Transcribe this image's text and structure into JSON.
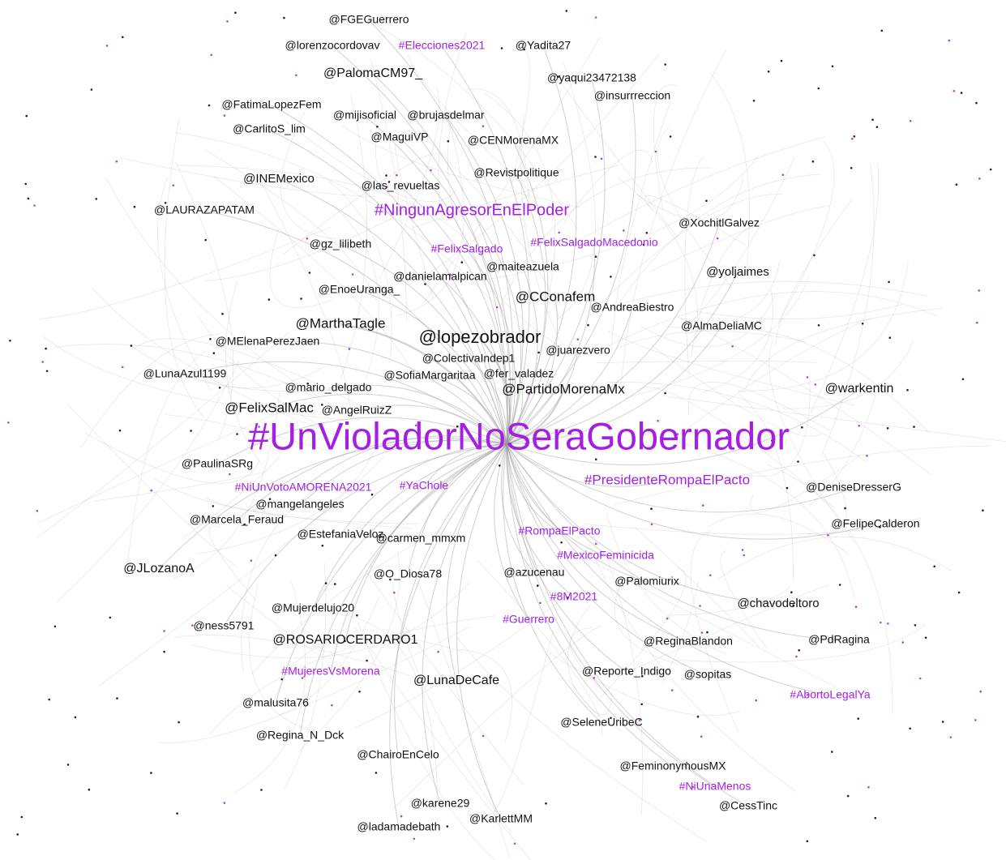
{
  "nodes": [
    {
      "label": "@FGEGuerrero"
    },
    {
      "label": "@lorenzocordovav"
    },
    {
      "label": "#Elecciones2021"
    },
    {
      "label": "@Yadita27"
    },
    {
      "label": "@PalomaCM97_"
    },
    {
      "label": "@yaqui23472138"
    },
    {
      "label": "@insurrreccion"
    },
    {
      "label": "@FatimaLopezFem"
    },
    {
      "label": "@mijisoficial"
    },
    {
      "label": "@brujasdelmar"
    },
    {
      "label": "@CarlitoS_lim"
    },
    {
      "label": "@MaguiVP"
    },
    {
      "label": "@CENMorenaMX"
    },
    {
      "label": "@Revistpolitique"
    },
    {
      "label": "@INEMexico"
    },
    {
      "label": "@las_revueltas"
    },
    {
      "label": "@LAURAZAPATAM"
    },
    {
      "label": "#NingunAgresorEnElPoder"
    },
    {
      "label": "@XochitlGalvez"
    },
    {
      "label": "#FelixSalgadoMacedonio"
    },
    {
      "label": "#FelixSalgado"
    },
    {
      "label": "@gz_lilibeth"
    },
    {
      "label": "@maiteazuela"
    },
    {
      "label": "@danielamalpican"
    },
    {
      "label": "@yoljaimes"
    },
    {
      "label": "@EnoeUranga_"
    },
    {
      "label": "@CConafem"
    },
    {
      "label": "@AndreaBiestro"
    },
    {
      "label": "@MarthaTagle"
    },
    {
      "label": "@AlmaDeliaMC"
    },
    {
      "label": "@lopezobrador"
    },
    {
      "label": "@MElenaPerezJaen"
    },
    {
      "label": "@ColectivaIndep1"
    },
    {
      "label": "@juarezvero"
    },
    {
      "label": "@LunaAzul1199"
    },
    {
      "label": "@mario_delgado"
    },
    {
      "label": "@SofiaMargaritaa"
    },
    {
      "label": "@fer_valadez"
    },
    {
      "label": "@PartidoMorenaMx"
    },
    {
      "label": "@warkentin"
    },
    {
      "label": "@FelixSalMac"
    },
    {
      "label": "@AngelRuizZ"
    },
    {
      "label": "#UnVioladorNoSeraGobernador"
    },
    {
      "label": "@PaulinaSRg"
    },
    {
      "label": "#NiUnVotoAMORENA2021"
    },
    {
      "label": "#YaChole"
    },
    {
      "label": "#PresidenteRompaElPacto"
    },
    {
      "label": "@DeniseDresserG"
    },
    {
      "label": "@mangelangeles"
    },
    {
      "label": "@Marcela_Feraud"
    },
    {
      "label": "@FelipeCalderon"
    },
    {
      "label": "@EstefaniaVeloz"
    },
    {
      "label": "@carmen_mmxm"
    },
    {
      "label": "#RompaElPacto"
    },
    {
      "label": "#MexicoFeminicida"
    },
    {
      "label": "@JLozanoA"
    },
    {
      "label": "@O_Diosa78"
    },
    {
      "label": "@azucenau"
    },
    {
      "label": "@Palomiurix"
    },
    {
      "label": "#8M2021"
    },
    {
      "label": "@Mujerdelujo20"
    },
    {
      "label": "@chavodeltoro"
    },
    {
      "label": "@ness5791"
    },
    {
      "label": "#Guerrero"
    },
    {
      "label": "@ROSARIOCERDARO1"
    },
    {
      "label": "@ReginaBlandon"
    },
    {
      "label": "@PdRagina"
    },
    {
      "label": "#MujeresVsMorena"
    },
    {
      "label": "@Reporte_Indigo"
    },
    {
      "label": "@sopitas"
    },
    {
      "label": "@LunaDeCafe"
    },
    {
      "label": "#AbortoLegalYa"
    },
    {
      "label": "@malusita76"
    },
    {
      "label": "@SeleneUribeC"
    },
    {
      "label": "@Regina_N_Dck"
    },
    {
      "label": "@ChairoEnCelo"
    },
    {
      "label": "@FeminonymousMX"
    },
    {
      "label": "#NiUnaMenos"
    },
    {
      "label": "@CessTinc"
    },
    {
      "label": "@karene29"
    },
    {
      "label": "@KarlettMM"
    },
    {
      "label": "@ladamadebath"
    }
  ]
}
